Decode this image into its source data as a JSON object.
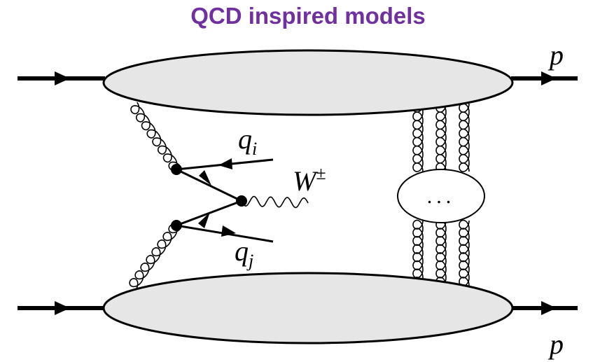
{
  "title": "QCD inspired models",
  "labels": {
    "p_top": "p",
    "p_bottom": "p",
    "qi": {
      "symbol": "q",
      "subscript": "i"
    },
    "qj": {
      "symbol": "q",
      "subscript": "j"
    },
    "w": {
      "symbol": "W",
      "superscript": "±"
    },
    "ellipsis": "..."
  }
}
